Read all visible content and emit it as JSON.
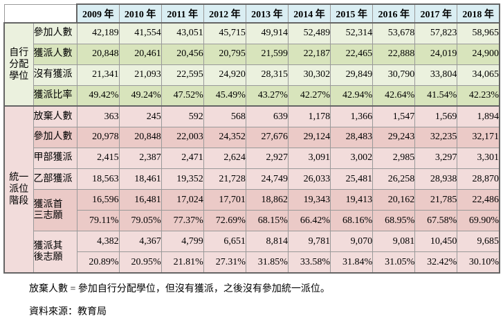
{
  "chart_data": {
    "type": "table",
    "columns": [
      "2009 年",
      "2010 年",
      "2011 年",
      "2012 年",
      "2013 年",
      "2014 年",
      "2015 年",
      "2016 年",
      "2017 年",
      "2018 年"
    ],
    "row_groups": [
      {
        "group": "自行分配學位",
        "group_label_lines": "自行\n分配\n學位",
        "theme": "green",
        "rows": [
          {
            "label": "參加人數",
            "tone": "light",
            "values": [
              "42,189",
              "41,554",
              "43,051",
              "45,715",
              "49,914",
              "52,489",
              "52,314",
              "53,678",
              "57,823",
              "58,965"
            ]
          },
          {
            "label": "獲派人數",
            "tone": "dark",
            "values": [
              "20,848",
              "20,461",
              "20,456",
              "20,795",
              "21,599",
              "22,187",
              "22,465",
              "22,888",
              "24,019",
              "24,900"
            ]
          },
          {
            "label": "沒有獲派",
            "tone": "light",
            "values": [
              "21,341",
              "21,093",
              "22,595",
              "24,920",
              "28,315",
              "30,302",
              "29,849",
              "30,790",
              "33,804",
              "34,065"
            ]
          },
          {
            "label": "獲派比率",
            "tone": "dark",
            "values": [
              "49.42%",
              "49.24%",
              "47.52%",
              "45.49%",
              "43.27%",
              "42.27%",
              "42.94%",
              "42.64%",
              "41.54%",
              "42.23%"
            ]
          }
        ]
      },
      {
        "group": "統一派位階段",
        "group_label_lines": "統一\n派位\n階段",
        "theme": "pink",
        "rows": [
          {
            "label": "放棄人數",
            "tone": "light",
            "values": [
              "363",
              "245",
              "592",
              "568",
              "639",
              "1,178",
              "1,366",
              "1,547",
              "1,569",
              "1,894"
            ]
          },
          {
            "label": "參加人數",
            "tone": "dark",
            "values": [
              "20,978",
              "20,848",
              "22,003",
              "24,352",
              "27,676",
              "29,124",
              "28,483",
              "29,243",
              "32,235",
              "32,171"
            ]
          },
          {
            "label": "甲部獲派",
            "tone": "light",
            "values": [
              "2,415",
              "2,387",
              "2,471",
              "2,624",
              "2,927",
              "3,091",
              "3,002",
              "2,985",
              "3,297",
              "3,301"
            ]
          },
          {
            "label": "乙部獲派",
            "tone": "light",
            "values": [
              "18,563",
              "18,461",
              "19,352",
              "21,728",
              "24,749",
              "26,033",
              "25,481",
              "26,258",
              "28,938",
              "28,870"
            ]
          },
          {
            "label": "獲派首\n三志願",
            "tone": "dark",
            "values": [
              "16,596",
              "16,481",
              "17,024",
              "17,701",
              "18,862",
              "19,343",
              "19,413",
              "20,162",
              "21,785",
              "22,486"
            ],
            "values_pct": [
              "79.11%",
              "79.05%",
              "77.37%",
              "72.69%",
              "68.15%",
              "66.42%",
              "68.16%",
              "68.95%",
              "67.58%",
              "69.90%"
            ]
          },
          {
            "label": "獲派其\n後志願",
            "tone": "light",
            "values": [
              "4,382",
              "4,367",
              "4,799",
              "6,651",
              "8,814",
              "9,781",
              "9,070",
              "9,081",
              "10,450",
              "9,685"
            ],
            "values_pct": [
              "20.89%",
              "20.95%",
              "21.81%",
              "27.31%",
              "31.85%",
              "33.58%",
              "31.84%",
              "31.05%",
              "32.42%",
              "30.10%"
            ]
          }
        ]
      }
    ]
  },
  "notes": {
    "definition": "放棄人數 = 參加自行分配學位，但沒有獲派，之後沒有參加統一派位。",
    "source": "資料來源：教育局"
  },
  "colors": {
    "header_bg": "#daeef3",
    "green_light": "#ebf1de",
    "green_dark": "#d8e4bc",
    "pink_light": "#f2dcdb",
    "pink_dark": "#ebcac7",
    "border_thin": "#999999",
    "border_thick": "#646464",
    "text": "#000000"
  }
}
